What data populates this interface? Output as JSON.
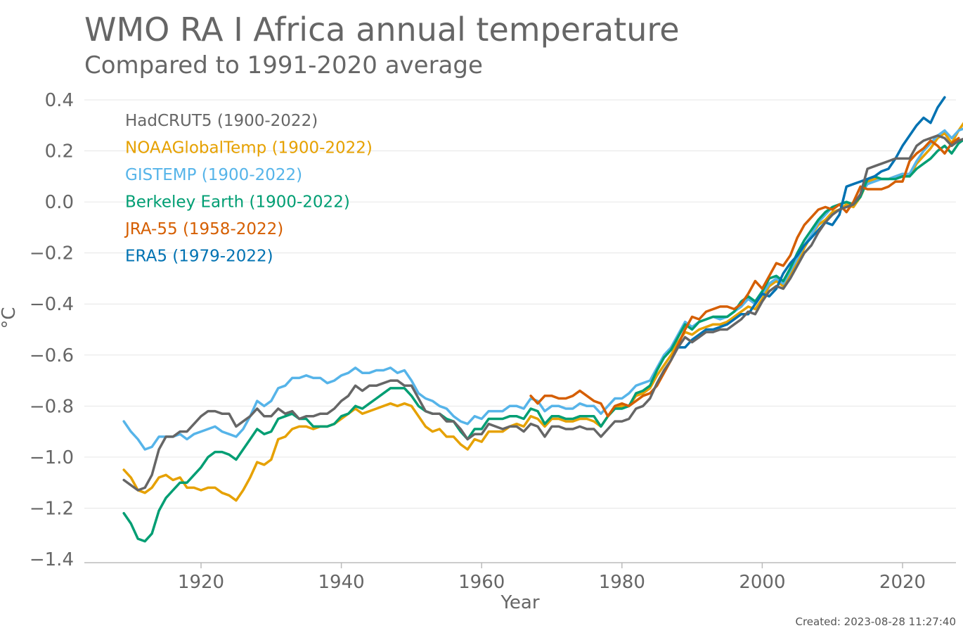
{
  "chart_data": {
    "type": "line",
    "title": "WMO RA I Africa annual temperature",
    "subtitle": "Compared to 1991-2020 average",
    "xlabel": "Year",
    "ylabel": "°C",
    "xlim": [
      1900,
      2022
    ],
    "ylim": [
      -1.4,
      0.4
    ],
    "x_ticks": [
      1920,
      1940,
      1960,
      1980,
      2000,
      2020
    ],
    "y_ticks": [
      0.4,
      0.2,
      0.0,
      -0.2,
      -0.4,
      -0.6,
      -0.8,
      -1.0,
      -1.2,
      -1.4
    ],
    "y_tick_labels": [
      "0.4",
      "0.2",
      "0.0",
      "−0.2",
      "−0.4",
      "−0.6",
      "−0.8",
      "−1.0",
      "−1.2",
      "−1.4"
    ],
    "grid": true,
    "legend_position": "top-left",
    "created": "Created: 2023-08-28 11:27:40",
    "series": [
      {
        "name": "HadCRUT5 (1900-2022)",
        "color": "#666666",
        "start_year": 1909,
        "values": [
          -1.09,
          -1.11,
          -1.13,
          -1.12,
          -1.07,
          -0.97,
          -0.92,
          -0.92,
          -0.9,
          -0.9,
          -0.87,
          -0.84,
          -0.82,
          -0.82,
          -0.83,
          -0.83,
          -0.88,
          -0.86,
          -0.84,
          -0.81,
          -0.84,
          -0.84,
          -0.81,
          -0.83,
          -0.82,
          -0.85,
          -0.84,
          -0.84,
          -0.83,
          -0.83,
          -0.81,
          -0.78,
          -0.76,
          -0.72,
          -0.74,
          -0.72,
          -0.72,
          -0.71,
          -0.7,
          -0.7,
          -0.72,
          -0.72,
          -0.77,
          -0.82,
          -0.83,
          -0.83,
          -0.86,
          -0.86,
          -0.89,
          -0.93,
          -0.91,
          -0.91,
          -0.87,
          -0.88,
          -0.89,
          -0.88,
          -0.88,
          -0.9,
          -0.87,
          -0.88,
          -0.92,
          -0.88,
          -0.88,
          -0.89,
          -0.89,
          -0.88,
          -0.89,
          -0.89,
          -0.92,
          -0.89,
          -0.86,
          -0.86,
          -0.85,
          -0.81,
          -0.8,
          -0.77,
          -0.71,
          -0.66,
          -0.62,
          -0.57,
          -0.53,
          -0.55,
          -0.53,
          -0.51,
          -0.51,
          -0.5,
          -0.5,
          -0.48,
          -0.46,
          -0.43,
          -0.44,
          -0.39,
          -0.35,
          -0.33,
          -0.34,
          -0.3,
          -0.25,
          -0.2,
          -0.17,
          -0.12,
          -0.08,
          -0.05,
          -0.03,
          -0.02,
          -0.01,
          0.03,
          0.13,
          0.14,
          0.15,
          0.16,
          0.17,
          0.17,
          0.17,
          0.22,
          0.24,
          0.25,
          0.26,
          0.25,
          0.22,
          0.24,
          0.25
        ]
      },
      {
        "name": "NOAAGlobalTemp (1900-2022)",
        "color": "#e6a100",
        "start_year": 1909,
        "values": [
          -1.05,
          -1.08,
          -1.13,
          -1.14,
          -1.12,
          -1.08,
          -1.07,
          -1.09,
          -1.08,
          -1.12,
          -1.12,
          -1.13,
          -1.12,
          -1.12,
          -1.14,
          -1.15,
          -1.17,
          -1.13,
          -1.08,
          -1.02,
          -1.03,
          -1.01,
          -0.93,
          -0.92,
          -0.89,
          -0.88,
          -0.88,
          -0.89,
          -0.88,
          -0.88,
          -0.87,
          -0.85,
          -0.83,
          -0.81,
          -0.83,
          -0.82,
          -0.81,
          -0.8,
          -0.79,
          -0.8,
          -0.79,
          -0.8,
          -0.84,
          -0.88,
          -0.9,
          -0.89,
          -0.92,
          -0.92,
          -0.95,
          -0.97,
          -0.93,
          -0.94,
          -0.9,
          -0.9,
          -0.9,
          -0.88,
          -0.87,
          -0.88,
          -0.84,
          -0.85,
          -0.88,
          -0.85,
          -0.85,
          -0.86,
          -0.86,
          -0.85,
          -0.85,
          -0.86,
          -0.88,
          -0.84,
          -0.81,
          -0.8,
          -0.8,
          -0.76,
          -0.75,
          -0.73,
          -0.68,
          -0.64,
          -0.6,
          -0.55,
          -0.51,
          -0.52,
          -0.5,
          -0.49,
          -0.48,
          -0.48,
          -0.47,
          -0.45,
          -0.43,
          -0.41,
          -0.42,
          -0.38,
          -0.33,
          -0.31,
          -0.33,
          -0.28,
          -0.24,
          -0.18,
          -0.13,
          -0.09,
          -0.07,
          -0.04,
          -0.03,
          -0.01,
          -0.02,
          0.02,
          0.08,
          0.09,
          0.09,
          0.09,
          0.1,
          0.11,
          0.1,
          0.15,
          0.18,
          0.21,
          0.25,
          0.27,
          0.23,
          0.28,
          0.32,
          0.34
        ]
      },
      {
        "name": "GISTEMP (1900-2022)",
        "color": "#56b4e9",
        "start_year": 1909,
        "values": [
          -0.86,
          -0.9,
          -0.93,
          -0.97,
          -0.96,
          -0.92,
          -0.92,
          -0.92,
          -0.91,
          -0.93,
          -0.91,
          -0.9,
          -0.89,
          -0.88,
          -0.9,
          -0.91,
          -0.92,
          -0.89,
          -0.84,
          -0.78,
          -0.8,
          -0.78,
          -0.73,
          -0.72,
          -0.69,
          -0.69,
          -0.68,
          -0.69,
          -0.69,
          -0.71,
          -0.7,
          -0.68,
          -0.67,
          -0.65,
          -0.67,
          -0.67,
          -0.66,
          -0.66,
          -0.65,
          -0.67,
          -0.66,
          -0.7,
          -0.75,
          -0.77,
          -0.78,
          -0.8,
          -0.81,
          -0.84,
          -0.86,
          -0.87,
          -0.84,
          -0.85,
          -0.82,
          -0.82,
          -0.82,
          -0.8,
          -0.8,
          -0.81,
          -0.77,
          -0.78,
          -0.82,
          -0.8,
          -0.8,
          -0.81,
          -0.81,
          -0.79,
          -0.8,
          -0.8,
          -0.83,
          -0.8,
          -0.77,
          -0.77,
          -0.75,
          -0.72,
          -0.71,
          -0.7,
          -0.65,
          -0.6,
          -0.57,
          -0.52,
          -0.47,
          -0.49,
          -0.47,
          -0.46,
          -0.45,
          -0.46,
          -0.45,
          -0.43,
          -0.41,
          -0.38,
          -0.4,
          -0.36,
          -0.32,
          -0.3,
          -0.32,
          -0.27,
          -0.22,
          -0.17,
          -0.13,
          -0.08,
          -0.05,
          -0.02,
          -0.01,
          0.0,
          -0.01,
          0.03,
          0.07,
          0.08,
          0.09,
          0.09,
          0.1,
          0.11,
          0.11,
          0.16,
          0.2,
          0.23,
          0.26,
          0.28,
          0.25,
          0.28,
          0.29,
          0.31
        ]
      },
      {
        "name": "Berkeley Earth (1900-2022)",
        "color": "#009e73",
        "start_year": 1909,
        "values": [
          -1.22,
          -1.26,
          -1.32,
          -1.33,
          -1.3,
          -1.21,
          -1.16,
          -1.13,
          -1.1,
          -1.1,
          -1.07,
          -1.04,
          -1.0,
          -0.98,
          -0.98,
          -0.99,
          -1.01,
          -0.97,
          -0.93,
          -0.89,
          -0.91,
          -0.9,
          -0.85,
          -0.84,
          -0.83,
          -0.85,
          -0.85,
          -0.88,
          -0.88,
          -0.88,
          -0.87,
          -0.84,
          -0.83,
          -0.8,
          -0.81,
          -0.79,
          -0.77,
          -0.75,
          -0.73,
          -0.73,
          -0.73,
          -0.76,
          -0.8,
          -0.82,
          -0.83,
          -0.83,
          -0.85,
          -0.86,
          -0.9,
          -0.93,
          -0.89,
          -0.89,
          -0.85,
          -0.85,
          -0.85,
          -0.84,
          -0.84,
          -0.85,
          -0.81,
          -0.82,
          -0.87,
          -0.84,
          -0.84,
          -0.85,
          -0.85,
          -0.84,
          -0.84,
          -0.84,
          -0.88,
          -0.84,
          -0.81,
          -0.81,
          -0.8,
          -0.75,
          -0.74,
          -0.72,
          -0.66,
          -0.61,
          -0.58,
          -0.53,
          -0.48,
          -0.5,
          -0.47,
          -0.46,
          -0.45,
          -0.45,
          -0.45,
          -0.43,
          -0.39,
          -0.37,
          -0.39,
          -0.35,
          -0.3,
          -0.29,
          -0.31,
          -0.26,
          -0.2,
          -0.15,
          -0.11,
          -0.07,
          -0.04,
          -0.02,
          -0.01,
          0.0,
          -0.01,
          0.02,
          0.09,
          0.1,
          0.09,
          0.09,
          0.09,
          0.1,
          0.1,
          0.13,
          0.15,
          0.17,
          0.2,
          0.22,
          0.19,
          0.23,
          0.25,
          0.27
        ]
      },
      {
        "name": "JRA-55 (1958-2022)",
        "color": "#d55e00",
        "start_year": 1967,
        "values": [
          -0.76,
          -0.79,
          -0.76,
          -0.76,
          -0.77,
          -0.77,
          -0.76,
          -0.74,
          -0.76,
          -0.78,
          -0.79,
          -0.84,
          -0.8,
          -0.79,
          -0.8,
          -0.78,
          -0.76,
          -0.75,
          -0.72,
          -0.67,
          -0.62,
          -0.56,
          -0.5,
          -0.45,
          -0.46,
          -0.43,
          -0.42,
          -0.41,
          -0.41,
          -0.42,
          -0.4,
          -0.36,
          -0.31,
          -0.34,
          -0.29,
          -0.24,
          -0.25,
          -0.21,
          -0.14,
          -0.09,
          -0.06,
          -0.03,
          -0.02,
          -0.03,
          -0.01,
          -0.04,
          0.0,
          0.06,
          0.05,
          0.05,
          0.05,
          0.06,
          0.08,
          0.08,
          0.16,
          0.19,
          0.21,
          0.24,
          0.22,
          0.19,
          0.23,
          0.25
        ]
      },
      {
        "name": "ERA5 (1979-2022)",
        "color": "#0072b2",
        "start_year": 1988,
        "values": [
          -0.57,
          -0.57,
          -0.54,
          -0.52,
          -0.5,
          -0.5,
          -0.49,
          -0.48,
          -0.46,
          -0.44,
          -0.44,
          -0.4,
          -0.36,
          -0.37,
          -0.34,
          -0.28,
          -0.24,
          -0.21,
          -0.17,
          -0.14,
          -0.11,
          -0.08,
          -0.09,
          -0.05,
          0.06,
          0.07,
          0.08,
          0.09,
          0.1,
          0.12,
          0.13,
          0.17,
          0.22,
          0.26,
          0.3,
          0.33,
          0.31,
          0.37,
          0.41
        ]
      }
    ]
  }
}
